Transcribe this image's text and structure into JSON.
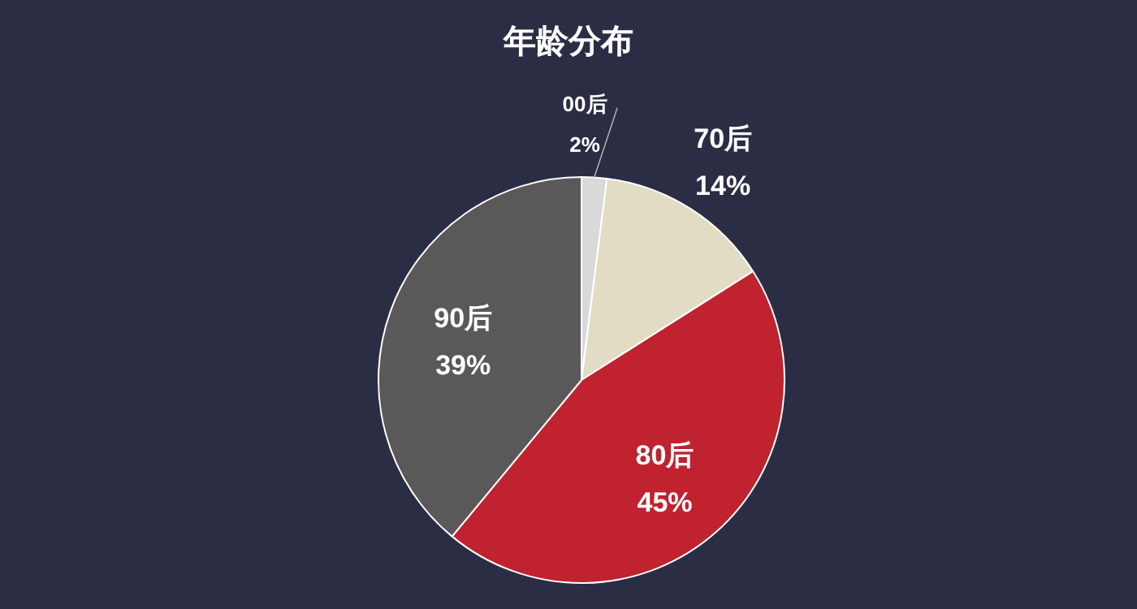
{
  "chart_data": {
    "type": "pie",
    "title": "年龄分布",
    "categories": [
      "00后",
      "70后",
      "80后",
      "90后"
    ],
    "values": [
      2,
      14,
      45,
      39
    ],
    "colors": [
      "#d9d9d9",
      "#e2dcc4",
      "#c0222f",
      "#5a5858"
    ],
    "value_labels": [
      "2%",
      "14%",
      "45%",
      "39%"
    ]
  }
}
